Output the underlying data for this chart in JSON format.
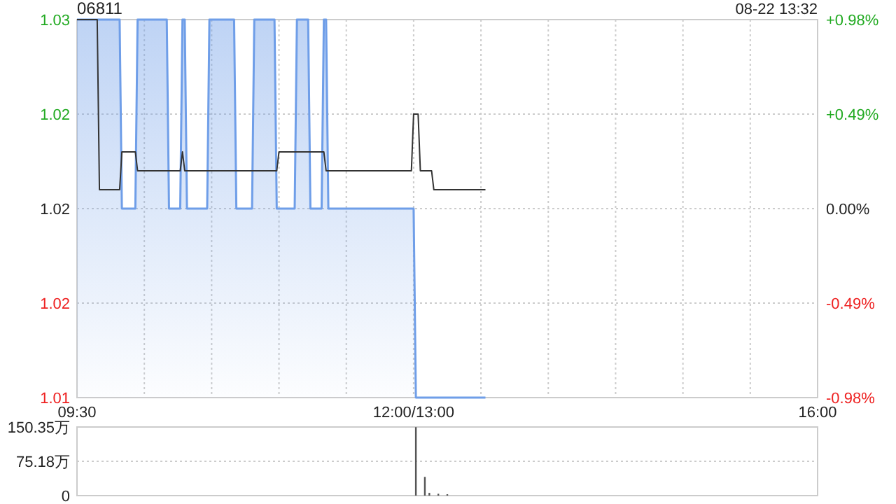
{
  "chart_data": [
    {
      "type": "area",
      "title": "06811",
      "annotations": [
        "08-22 13:32"
      ],
      "categories": [
        "09:30",
        null,
        null,
        null,
        null,
        null,
        null,
        null,
        null,
        null,
        null,
        null,
        null,
        null,
        null,
        null,
        null,
        null,
        null,
        null,
        null,
        null,
        null,
        null,
        null,
        null,
        null,
        null,
        null,
        null,
        null,
        null,
        null,
        null,
        null,
        null,
        null,
        null,
        null,
        null,
        null,
        null,
        null,
        null,
        null,
        null,
        null,
        null,
        null,
        null,
        null,
        null,
        null,
        null,
        null,
        null,
        null,
        null,
        null,
        null,
        null,
        null,
        null,
        null,
        null,
        null,
        null,
        null,
        null,
        null,
        null,
        null,
        null,
        null,
        null,
        null,
        null,
        null,
        null,
        null,
        null,
        null,
        null,
        null,
        null,
        null,
        null,
        null,
        null,
        null,
        null,
        null,
        null,
        null,
        null,
        null,
        null,
        null,
        null,
        null,
        null,
        null,
        null,
        null,
        null,
        null,
        null,
        null,
        null,
        null,
        null,
        null,
        null,
        null,
        null,
        null,
        null,
        null,
        null,
        null,
        null,
        null,
        null,
        null,
        null,
        null,
        null,
        null,
        null,
        null,
        null,
        null,
        null,
        null,
        null,
        null,
        null,
        null,
        null,
        null,
        null,
        null,
        null,
        null,
        null,
        null,
        null,
        null,
        null,
        null,
        "12:00/13:00",
        null,
        null,
        null,
        null,
        null,
        null,
        null,
        null,
        null,
        null,
        null,
        null,
        null,
        null,
        null,
        null,
        null,
        null,
        null,
        null,
        null,
        null,
        null,
        null,
        null,
        null,
        null,
        null,
        null,
        null,
        null,
        null,
        null,
        null,
        null,
        null,
        null,
        null,
        null,
        null,
        null,
        null,
        null,
        null,
        null,
        null,
        null,
        null,
        null,
        null,
        null,
        null,
        null,
        null,
        null,
        null,
        null,
        null,
        null,
        null,
        null,
        null,
        null,
        null,
        null,
        null,
        null,
        null,
        null,
        null,
        null,
        null,
        null,
        null,
        null,
        null,
        null,
        null,
        null,
        null,
        null,
        null,
        null,
        null,
        null,
        null,
        null,
        null,
        null,
        null,
        null,
        null,
        null,
        null,
        null,
        null,
        null,
        null,
        null,
        null,
        null,
        null,
        null,
        null,
        null,
        null,
        null,
        null,
        null,
        null,
        null,
        null,
        null,
        null,
        null,
        null,
        null,
        null,
        null,
        null,
        null,
        null,
        null,
        null,
        null,
        null,
        null,
        null,
        null,
        null,
        null,
        null,
        null,
        null,
        null,
        null,
        null,
        null,
        null,
        null,
        null,
        null,
        null,
        null,
        null,
        null,
        null,
        null,
        null,
        null,
        null,
        null,
        null,
        null,
        null,
        null,
        null,
        null,
        null,
        null,
        null,
        null,
        null,
        null,
        null,
        null,
        null,
        null,
        null,
        null,
        null,
        null,
        null,
        null,
        null,
        null,
        null,
        null,
        null,
        "16:00"
      ],
      "ylim": [
        1.01,
        1.03
      ],
      "yticks": [
        {
          "value": 1.01,
          "label": "1.01"
        },
        {
          "value": 1.015,
          "label": "1.02"
        },
        {
          "value": 1.02,
          "label": "1.02"
        },
        {
          "value": 1.025,
          "label": "1.02"
        },
        {
          "value": 1.03,
          "label": "1.03"
        }
      ],
      "y2lim": [
        -0.98,
        0.98
      ],
      "y2ticks": [
        {
          "value": -0.98,
          "label": "-0.98%"
        },
        {
          "value": -0.49,
          "label": "-0.49%"
        },
        {
          "value": 0,
          "label": "0.00%"
        },
        {
          "value": 0.49,
          "label": "+0.49%"
        },
        {
          "value": 0.98,
          "label": "+0.98%"
        }
      ],
      "grid": true,
      "series": [
        {
          "type": "area",
          "color": "#6f9ee8",
          "values": [
            1.03,
            1.03,
            1.03,
            1.03,
            1.03,
            1.03,
            1.03,
            1.03,
            1.03,
            1.03,
            1.03,
            1.03,
            1.03,
            1.03,
            1.03,
            1.03,
            1.03,
            1.03,
            1.03,
            1.03,
            1.02,
            1.02,
            1.02,
            1.02,
            1.02,
            1.02,
            1.02,
            1.03,
            1.03,
            1.03,
            1.03,
            1.03,
            1.03,
            1.03,
            1.03,
            1.03,
            1.03,
            1.03,
            1.03,
            1.03,
            1.03,
            1.02,
            1.02,
            1.02,
            1.02,
            1.02,
            1.02,
            1.03,
            1.03,
            1.02,
            1.02,
            1.02,
            1.02,
            1.02,
            1.02,
            1.02,
            1.02,
            1.02,
            1.02,
            1.03,
            1.03,
            1.03,
            1.03,
            1.03,
            1.03,
            1.03,
            1.03,
            1.03,
            1.03,
            1.03,
            1.03,
            1.02,
            1.02,
            1.02,
            1.02,
            1.02,
            1.02,
            1.02,
            1.02,
            1.03,
            1.03,
            1.03,
            1.03,
            1.03,
            1.03,
            1.03,
            1.03,
            1.03,
            1.03,
            1.02,
            1.02,
            1.02,
            1.02,
            1.02,
            1.02,
            1.02,
            1.02,
            1.02,
            1.03,
            1.03,
            1.03,
            1.03,
            1.03,
            1.03,
            1.02,
            1.02,
            1.02,
            1.02,
            1.02,
            1.02,
            1.03,
            1.03,
            1.02,
            1.02,
            1.02,
            1.02,
            1.02,
            1.02,
            1.02,
            1.02,
            1.02,
            1.02,
            1.02,
            1.02,
            1.02,
            1.02,
            1.02,
            1.02,
            1.02,
            1.02,
            1.02,
            1.02,
            1.02,
            1.02,
            1.02,
            1.02,
            1.02,
            1.02,
            1.02,
            1.02,
            1.02,
            1.02,
            1.02,
            1.02,
            1.02,
            1.02,
            1.02,
            1.02,
            1.02,
            1.02,
            1.02,
            1.01,
            1.01,
            1.01,
            1.01,
            1.01,
            1.01,
            1.01,
            1.01,
            1.01,
            1.01,
            1.01,
            1.01,
            1.01,
            1.01,
            1.01,
            1.01,
            1.01,
            1.01,
            1.01,
            1.01,
            1.01,
            1.01,
            1.01,
            1.01,
            1.01,
            1.01,
            1.01,
            1.01,
            1.01,
            1.01,
            1.01,
            1.01,
            null,
            null,
            null,
            null,
            null,
            null,
            null,
            null,
            null,
            null,
            null,
            null,
            null,
            null,
            null,
            null,
            null,
            null,
            null,
            null,
            null,
            null,
            null,
            null,
            null,
            null,
            null,
            null,
            null,
            null,
            null,
            null,
            null,
            null,
            null,
            null,
            null,
            null,
            null,
            null,
            null,
            null,
            null,
            null,
            null,
            null,
            null,
            null,
            null,
            null,
            null,
            null,
            null,
            null,
            null,
            null,
            null,
            null,
            null,
            null,
            null,
            null,
            null,
            null,
            null,
            null,
            null,
            null,
            null,
            null,
            null,
            null,
            null,
            null,
            null,
            null,
            null,
            null,
            null,
            null,
            null,
            null,
            null,
            null,
            null,
            null,
            null,
            null,
            null,
            null,
            null,
            null,
            null,
            null,
            null,
            null,
            null,
            null,
            null,
            null,
            null,
            null,
            null,
            null,
            null,
            null,
            null,
            null,
            null,
            null,
            null,
            null,
            null,
            null,
            null,
            null,
            null,
            null,
            null,
            null,
            null,
            null,
            null,
            null,
            null,
            null,
            null,
            null,
            null,
            null,
            null,
            null,
            null,
            null,
            null,
            null,
            null,
            null,
            null,
            null,
            null,
            null,
            null,
            null,
            null,
            null,
            null,
            null
          ]
        },
        {
          "type": "line",
          "color": "#333333",
          "values": [
            1.03,
            1.03,
            1.03,
            1.03,
            1.03,
            1.03,
            1.03,
            1.03,
            1.03,
            1.03,
            1.021,
            1.021,
            1.021,
            1.021,
            1.021,
            1.021,
            1.021,
            1.021,
            1.021,
            1.021,
            1.023,
            1.023,
            1.023,
            1.023,
            1.023,
            1.023,
            1.023,
            1.022,
            1.022,
            1.022,
            1.022,
            1.022,
            1.022,
            1.022,
            1.022,
            1.022,
            1.022,
            1.022,
            1.022,
            1.022,
            1.022,
            1.022,
            1.022,
            1.022,
            1.022,
            1.022,
            1.022,
            1.023,
            1.022,
            1.022,
            1.022,
            1.022,
            1.022,
            1.022,
            1.022,
            1.022,
            1.022,
            1.022,
            1.022,
            1.022,
            1.022,
            1.022,
            1.022,
            1.022,
            1.022,
            1.022,
            1.022,
            1.022,
            1.022,
            1.022,
            1.022,
            1.022,
            1.022,
            1.022,
            1.022,
            1.022,
            1.022,
            1.022,
            1.022,
            1.022,
            1.022,
            1.022,
            1.022,
            1.022,
            1.022,
            1.022,
            1.022,
            1.022,
            1.022,
            1.022,
            1.023,
            1.023,
            1.023,
            1.023,
            1.023,
            1.023,
            1.023,
            1.023,
            1.023,
            1.023,
            1.023,
            1.023,
            1.023,
            1.023,
            1.023,
            1.023,
            1.023,
            1.023,
            1.023,
            1.023,
            1.023,
            1.022,
            1.022,
            1.022,
            1.022,
            1.022,
            1.022,
            1.022,
            1.022,
            1.022,
            1.022,
            1.022,
            1.022,
            1.022,
            1.022,
            1.022,
            1.022,
            1.022,
            1.022,
            1.022,
            1.022,
            1.022,
            1.022,
            1.022,
            1.022,
            1.022,
            1.022,
            1.022,
            1.022,
            1.022,
            1.022,
            1.022,
            1.022,
            1.022,
            1.022,
            1.022,
            1.022,
            1.022,
            1.022,
            1.022,
            1.025,
            1.025,
            1.025,
            1.022,
            1.022,
            1.022,
            1.022,
            1.022,
            1.022,
            1.021,
            1.021,
            1.021,
            1.021,
            1.021,
            1.021,
            1.021,
            1.021,
            1.021,
            1.021,
            1.021,
            1.021,
            1.021,
            1.021,
            1.021,
            1.021,
            1.021,
            1.021,
            1.021,
            1.021,
            1.021,
            1.021,
            1.021,
            1.021,
            null,
            null,
            null,
            null,
            null,
            null,
            null,
            null,
            null,
            null,
            null,
            null,
            null,
            null,
            null,
            null,
            null,
            null,
            null,
            null,
            null,
            null,
            null,
            null,
            null,
            null,
            null,
            null,
            null,
            null,
            null,
            null,
            null,
            null,
            null,
            null,
            null,
            null,
            null,
            null,
            null,
            null,
            null,
            null,
            null,
            null,
            null,
            null,
            null,
            null,
            null,
            null,
            null,
            null,
            null,
            null,
            null,
            null,
            null,
            null,
            null,
            null,
            null,
            null,
            null,
            null,
            null,
            null,
            null,
            null,
            null,
            null,
            null,
            null,
            null,
            null,
            null,
            null,
            null,
            null,
            null,
            null,
            null,
            null,
            null,
            null,
            null,
            null,
            null,
            null,
            null,
            null,
            null,
            null,
            null,
            null,
            null,
            null,
            null,
            null,
            null,
            null,
            null,
            null,
            null,
            null,
            null,
            null,
            null,
            null,
            null,
            null,
            null,
            null,
            null,
            null,
            null,
            null,
            null,
            null,
            null,
            null,
            null,
            null,
            null,
            null,
            null,
            null,
            null,
            null,
            null,
            null,
            null,
            null,
            null,
            null,
            null,
            null,
            null,
            null,
            null,
            null,
            null,
            null,
            null,
            null,
            null,
            null
          ]
        }
      ]
    },
    {
      "type": "bar",
      "ylim": [
        0,
        150.35
      ],
      "yticks": [
        0,
        {
          "value": 75.18,
          "label": "75.18万"
        },
        {
          "value": 150.35,
          "label": "150.35万"
        }
      ],
      "grid": "y",
      "tick_labels": "y",
      "color": "#555555",
      "categories": [
        null,
        null,
        null,
        null,
        null,
        null,
        null,
        null,
        null,
        null,
        null,
        null,
        null,
        null,
        null,
        null,
        null,
        null,
        null,
        null,
        null,
        null,
        null,
        null,
        null,
        null,
        null,
        null,
        null,
        null,
        null,
        null,
        null,
        null,
        null,
        null,
        null,
        null,
        null,
        null,
        null,
        null,
        null,
        null,
        null,
        null,
        null,
        null,
        null,
        null,
        null,
        null,
        null,
        null,
        null,
        null,
        null,
        null,
        null,
        null,
        null,
        null,
        null,
        null,
        null,
        null,
        null,
        null,
        null,
        null,
        null,
        null,
        null,
        null,
        null,
        null,
        null,
        null,
        null,
        null,
        null,
        null,
        null,
        null,
        null,
        null,
        null,
        null,
        null,
        null,
        null,
        null,
        null,
        null,
        null,
        null,
        null,
        null,
        null,
        null,
        null,
        null,
        null,
        null,
        null,
        null,
        null,
        null,
        null,
        null,
        null,
        null,
        null,
        null,
        null,
        null,
        null,
        null,
        null,
        null,
        null,
        null,
        null,
        null,
        null,
        null,
        null,
        null,
        null,
        null,
        null,
        null,
        null,
        null,
        null,
        null,
        null,
        null,
        null,
        null,
        null,
        null,
        null,
        null,
        null,
        null,
        null,
        null,
        null,
        null,
        null,
        null,
        null,
        null,
        null,
        null,
        null,
        null,
        null,
        null,
        null,
        null,
        null,
        null,
        null,
        null,
        null,
        null,
        null,
        null,
        null,
        null,
        null,
        null,
        null,
        null,
        null,
        null,
        null,
        null,
        null,
        null,
        null,
        null,
        null,
        null,
        null,
        null,
        null,
        null,
        null,
        null,
        null,
        null,
        null,
        null,
        null,
        null,
        null,
        null,
        null,
        null,
        null,
        null,
        null,
        null,
        null,
        null,
        null,
        null,
        null,
        null,
        null,
        null,
        null,
        null,
        null,
        null,
        null,
        null,
        null,
        null,
        null,
        null,
        null,
        null,
        null,
        null,
        null,
        null,
        null,
        null,
        null,
        null,
        null,
        null,
        null,
        null,
        null,
        null,
        null,
        null,
        null,
        null,
        null,
        null,
        null,
        null,
        null,
        null,
        null,
        null,
        null,
        null,
        null,
        null,
        null,
        null,
        null,
        null,
        null,
        null,
        null,
        null,
        null,
        null,
        null,
        null,
        null,
        null,
        null,
        null,
        null,
        null,
        null,
        null,
        null,
        null,
        null,
        null,
        null,
        null,
        null,
        null,
        null,
        null,
        null,
        null,
        null,
        null,
        null,
        null,
        null,
        null,
        null,
        null,
        null,
        null,
        null,
        null,
        null,
        null,
        null,
        null,
        null,
        null,
        null,
        null,
        null,
        null,
        null,
        null,
        null,
        null,
        null,
        null,
        null,
        null,
        null,
        null,
        null,
        null,
        null,
        null,
        null,
        null,
        null,
        null,
        null,
        null,
        null
      ],
      "values": [
        null,
        null,
        null,
        null,
        null,
        null,
        null,
        null,
        null,
        null,
        null,
        null,
        null,
        null,
        null,
        null,
        null,
        null,
        null,
        null,
        null,
        null,
        null,
        null,
        null,
        null,
        null,
        null,
        null,
        null,
        null,
        null,
        null,
        null,
        null,
        null,
        null,
        null,
        null,
        null,
        null,
        null,
        null,
        null,
        null,
        null,
        null,
        null,
        null,
        null,
        null,
        null,
        null,
        null,
        null,
        null,
        null,
        null,
        null,
        null,
        null,
        null,
        null,
        null,
        null,
        null,
        null,
        null,
        null,
        null,
        null,
        null,
        null,
        null,
        null,
        null,
        null,
        null,
        null,
        null,
        null,
        null,
        null,
        null,
        null,
        null,
        null,
        null,
        null,
        null,
        null,
        null,
        null,
        null,
        null,
        null,
        null,
        null,
        null,
        null,
        null,
        null,
        null,
        null,
        null,
        null,
        null,
        null,
        null,
        null,
        null,
        null,
        null,
        null,
        null,
        null,
        null,
        null,
        null,
        null,
        null,
        null,
        null,
        null,
        null,
        null,
        null,
        null,
        null,
        null,
        null,
        null,
        null,
        null,
        null,
        null,
        null,
        null,
        null,
        null,
        null,
        null,
        null,
        null,
        null,
        null,
        null,
        null,
        null,
        null,
        null,
        150,
        null,
        null,
        null,
        41,
        null,
        6,
        null,
        null,
        null,
        4,
        null,
        null,
        null,
        3,
        null,
        null,
        null,
        null,
        null,
        null,
        null,
        null,
        null,
        null,
        null,
        null,
        null,
        null,
        null,
        null,
        null,
        null,
        null,
        null,
        null,
        null,
        null,
        null,
        null,
        null,
        null,
        null,
        null,
        null,
        null,
        null,
        null,
        null,
        null,
        null,
        null,
        null,
        null,
        null,
        null,
        null,
        null,
        null,
        null,
        null,
        null,
        null,
        null,
        null,
        null,
        null,
        null,
        null,
        null,
        null,
        null,
        null,
        null,
        null,
        null,
        null,
        null,
        null,
        null,
        null,
        null,
        null,
        null,
        null,
        null,
        null,
        null,
        null,
        null,
        null,
        null,
        null,
        null,
        null,
        null,
        null,
        null,
        null,
        null,
        null,
        null,
        null,
        null,
        null,
        null,
        null,
        null,
        null,
        null,
        null,
        null,
        null,
        null,
        null,
        null,
        null,
        null,
        null,
        null,
        null,
        null,
        null,
        null,
        null,
        null,
        null,
        null,
        null,
        null,
        null,
        null,
        null,
        null,
        null,
        null,
        null,
        null,
        null,
        null,
        null,
        null,
        null,
        null,
        null,
        null,
        null,
        null,
        null,
        null,
        null,
        null,
        null,
        null,
        null,
        null,
        null,
        null,
        null,
        null,
        null,
        null,
        null,
        null,
        null,
        null,
        null,
        null,
        null,
        null,
        null,
        null,
        null,
        null,
        null,
        null,
        null,
        null,
        null,
        null
      ]
    }
  ]
}
